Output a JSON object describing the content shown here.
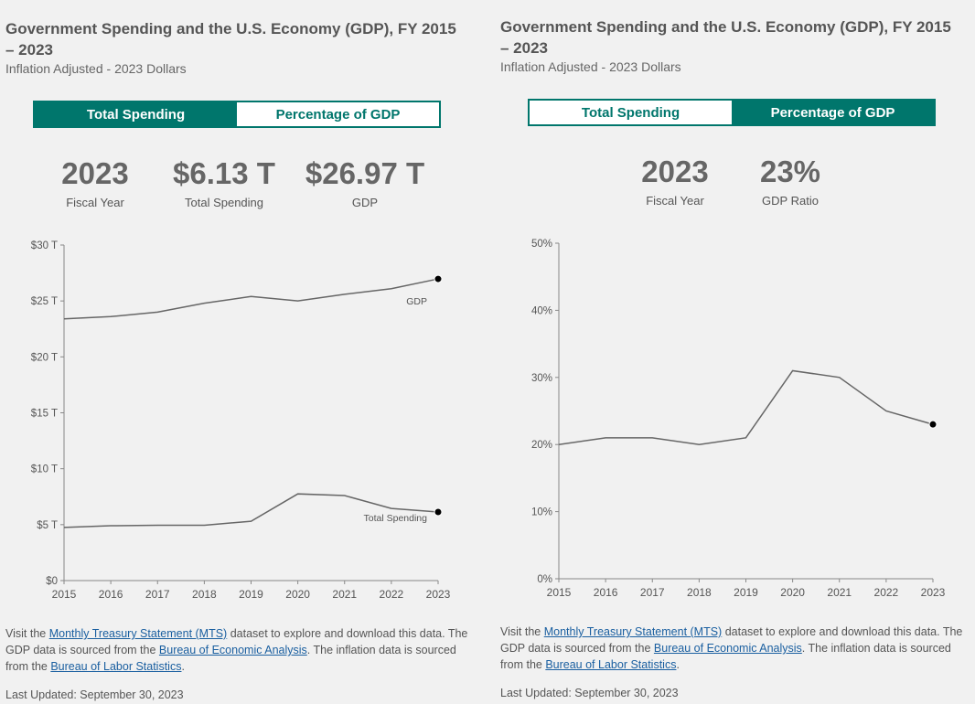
{
  "left": {
    "title": "Government Spending and the U.S. Economy (GDP), FY 2015 – 2023",
    "subtitle": "Inflation Adjusted - 2023 Dollars",
    "tabs": [
      "Total Spending",
      "Percentage of GDP"
    ],
    "active_tab": 0,
    "stats": [
      {
        "value": "2023",
        "label": "Fiscal Year"
      },
      {
        "value": "$6.13 T",
        "label": "Total Spending"
      },
      {
        "value": "$26.97 T",
        "label": "GDP"
      }
    ],
    "footer": {
      "p1": "Visit the ",
      "link1": "Monthly Treasury Statement (MTS)",
      "p2": " dataset to explore and download this data. The GDP data is sourced from the ",
      "link2": "Bureau of Economic Analysis",
      "p3": ". The inflation data is sourced from the ",
      "link3": "Bureau of Labor Statistics",
      "p4": "."
    },
    "updated": "Last Updated: September 30, 2023"
  },
  "right": {
    "title": "Government Spending and the U.S. Economy (GDP), FY 2015 – 2023",
    "subtitle": "Inflation Adjusted - 2023 Dollars",
    "tabs": [
      "Total Spending",
      "Percentage of GDP"
    ],
    "active_tab": 1,
    "stats": [
      {
        "value": "2023",
        "label": "Fiscal Year"
      },
      {
        "value": "23%",
        "label": "GDP Ratio"
      }
    ],
    "footer": {
      "p1": "Visit the ",
      "link1": "Monthly Treasury Statement (MTS)",
      "p2": " dataset to explore and download this data. The GDP data is sourced from the ",
      "link2": "Bureau of Economic Analysis",
      "p3": ". The inflation data is sourced from the ",
      "link3": "Bureau of Labor Statistics",
      "p4": "."
    },
    "updated": "Last Updated: September 30, 2023"
  },
  "colors": {
    "accent": "#00766c",
    "line": "#666666",
    "marker": "#000000",
    "link": "#1a5fa0"
  },
  "chart_data": [
    {
      "type": "line",
      "x": [
        "2015",
        "2016",
        "2017",
        "2018",
        "2019",
        "2020",
        "2021",
        "2022",
        "2023"
      ],
      "ylim": [
        0,
        30
      ],
      "yticks": [
        0,
        5,
        10,
        15,
        20,
        25,
        30
      ],
      "ytick_labels": [
        "$0",
        "$5 T",
        "$10 T",
        "$15 T",
        "$20 T",
        "$25 T",
        "$30 T"
      ],
      "series": [
        {
          "name": "GDP",
          "values": [
            23.4,
            23.6,
            24.0,
            24.8,
            25.4,
            25.0,
            25.6,
            26.1,
            26.97
          ]
        },
        {
          "name": "Total Spending",
          "values": [
            4.75,
            4.9,
            4.95,
            4.95,
            5.3,
            7.75,
            7.6,
            6.45,
            6.13
          ]
        }
      ],
      "grid": false
    },
    {
      "type": "line",
      "x": [
        "2015",
        "2016",
        "2017",
        "2018",
        "2019",
        "2020",
        "2021",
        "2022",
        "2023"
      ],
      "ylim": [
        0,
        50
      ],
      "yticks": [
        0,
        10,
        20,
        30,
        40,
        50
      ],
      "ytick_labels": [
        "0%",
        "10%",
        "20%",
        "30%",
        "40%",
        "50%"
      ],
      "series": [
        {
          "values": [
            20,
            21,
            21,
            20,
            21,
            31,
            30,
            25,
            23
          ]
        }
      ],
      "grid": false
    }
  ]
}
